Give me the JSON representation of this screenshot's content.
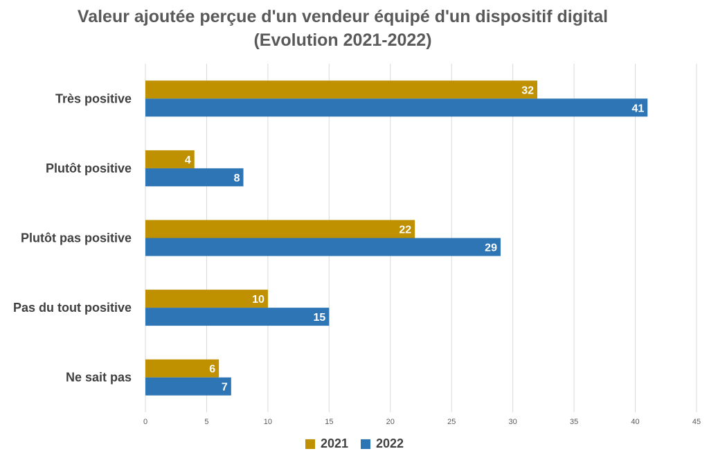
{
  "chart_data": {
    "type": "bar",
    "orientation": "horizontal",
    "title": "Valeur ajoutée perçue d'un vendeur équipé d'un dispositif digital",
    "subtitle": "(Evolution 2021-2022)",
    "categories": [
      "Très positive",
      "Plutôt positive",
      "Plutôt pas positive",
      "Pas du tout positive",
      "Ne sait pas"
    ],
    "series": [
      {
        "name": "2021",
        "color": "#bf9000",
        "values": [
          32,
          4,
          22,
          10,
          6
        ]
      },
      {
        "name": "2022",
        "color": "#2e75b6",
        "values": [
          41,
          8,
          29,
          15,
          7
        ]
      }
    ],
    "xlim": [
      0,
      45
    ],
    "xticks": [
      0,
      5,
      10,
      15,
      20,
      25,
      30,
      35,
      40,
      45
    ],
    "grid": true,
    "legend": "bottom"
  }
}
